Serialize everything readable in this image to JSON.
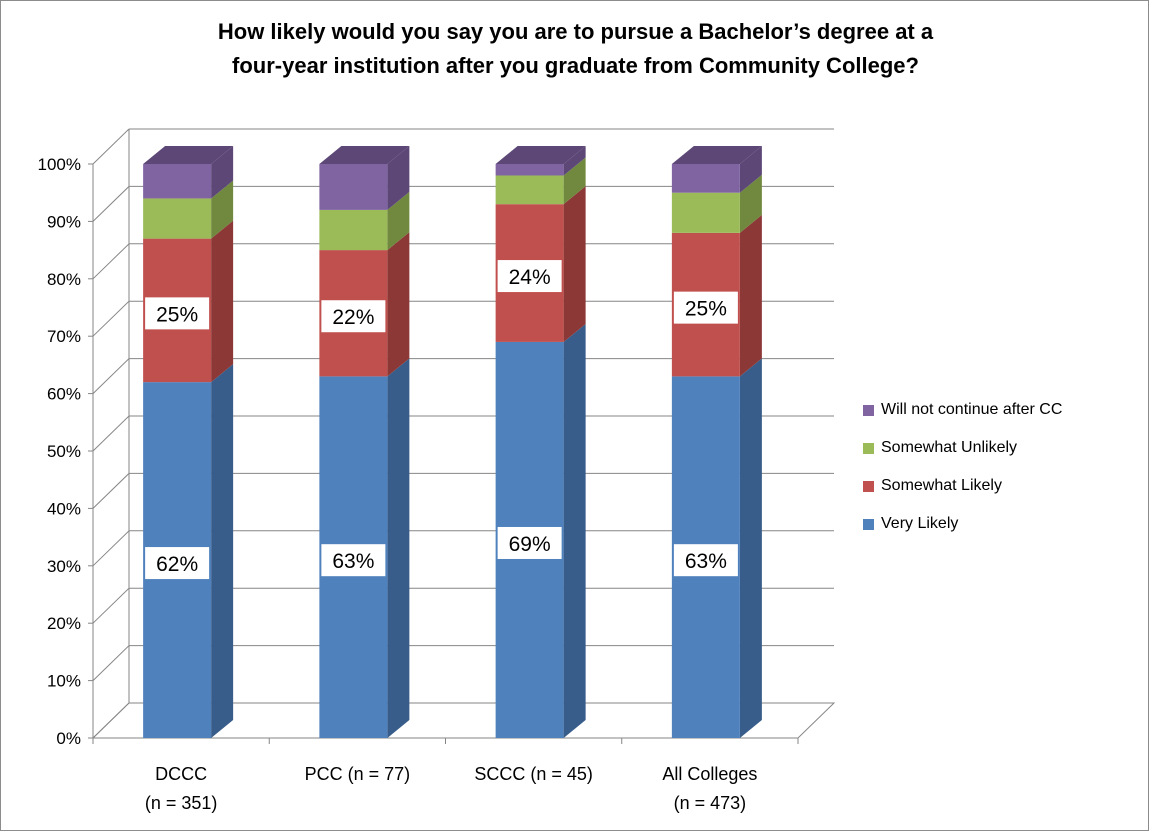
{
  "chart_data": {
    "type": "bar",
    "stacked": true,
    "three_d": true,
    "title_lines": [
      "How likely would you say you are to pursue a Bachelor’s degree at a",
      "four-year institution after you graduate from Community College?"
    ],
    "categories": [
      [
        "DCCC",
        "(n = 351)"
      ],
      [
        "PCC (n = 77)"
      ],
      [
        "SCCC (n = 45)"
      ],
      [
        "All Colleges",
        "(n = 473)"
      ]
    ],
    "series": [
      {
        "name": "Very Likely",
        "color": "#4f81bd",
        "side_color": "#385d8a",
        "values": [
          62,
          63,
          69,
          63
        ],
        "labels": [
          "62%",
          "63%",
          "69%",
          "63%"
        ]
      },
      {
        "name": "Somewhat Likely",
        "color": "#c0504d",
        "side_color": "#8c3836",
        "values": [
          25,
          22,
          24,
          25
        ],
        "labels": [
          "25%",
          "22%",
          "24%",
          "25%"
        ]
      },
      {
        "name": "Somewhat Unlikely",
        "color": "#9bbb59",
        "side_color": "#71893f",
        "values": [
          7,
          7,
          5,
          7
        ],
        "labels": [
          "",
          "",
          "",
          ""
        ]
      },
      {
        "name": "Will not continue after CC",
        "color": "#8064a2",
        "side_color": "#5c4776",
        "values": [
          6,
          8,
          2,
          5
        ],
        "labels": [
          "",
          "",
          "",
          ""
        ]
      }
    ],
    "y_ticks": [
      "0%",
      "10%",
      "20%",
      "30%",
      "40%",
      "50%",
      "60%",
      "70%",
      "80%",
      "90%",
      "100%"
    ],
    "ylim": [
      0,
      100
    ],
    "grid": true,
    "legend_position": "right"
  }
}
